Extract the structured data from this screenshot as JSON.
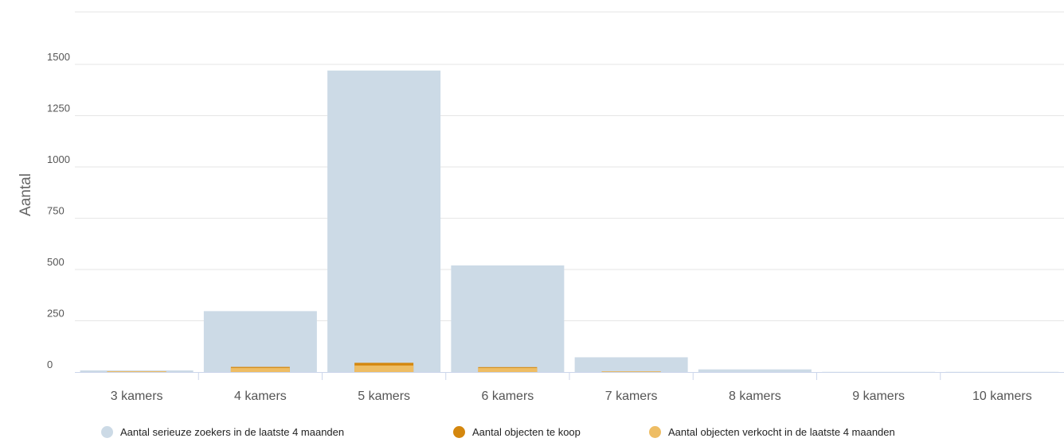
{
  "chart_data": {
    "type": "bar",
    "ylabel": "Aantal",
    "ylim": [
      0,
      1500
    ],
    "yticks": [
      0,
      250,
      500,
      750,
      1000,
      1250,
      1500
    ],
    "grid": true,
    "legend_position": "bottom",
    "categories": [
      "3 kamers",
      "4 kamers",
      "5 kamers",
      "6 kamers",
      "7 kamers",
      "8 kamers",
      "9 kamers",
      "10 kamers"
    ],
    "series": [
      {
        "name": "Aantal serieuze zoekers in de laatste 4 maanden",
        "color": "#ccdae6",
        "values": [
          8,
          297,
          1470,
          520,
          72,
          13,
          1,
          1
        ]
      },
      {
        "name": "Aantal objecten te koop",
        "color": "#d4870e",
        "values": [
          4,
          25,
          45,
          24,
          3,
          0,
          0,
          0
        ]
      },
      {
        "name": "Aantal objecten verkocht in de laatste 4 maanden",
        "color": "#eebd64",
        "values": [
          4,
          20,
          32,
          20,
          3,
          0,
          0,
          0
        ]
      }
    ]
  }
}
